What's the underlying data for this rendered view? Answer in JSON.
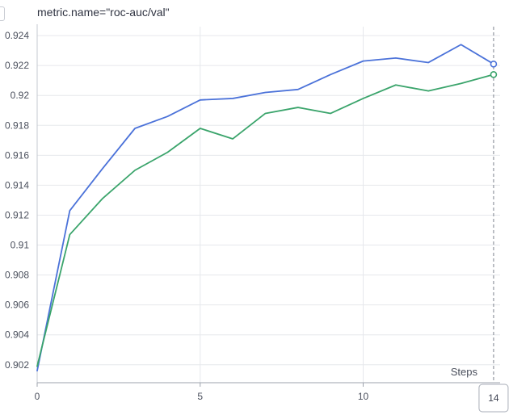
{
  "title": "metric.name=\"roc-auc/val\"",
  "chart_data": {
    "type": "line",
    "xlabel": "Steps",
    "ylabel": "",
    "xlim": [
      0,
      14.2
    ],
    "ylim": [
      0.9008,
      0.9246
    ],
    "x_ticks": [
      0,
      5,
      10
    ],
    "y_ticks": [
      0.902,
      0.904,
      0.906,
      0.908,
      0.91,
      0.912,
      0.914,
      0.916,
      0.918,
      0.92,
      0.922,
      0.924
    ],
    "y_tick_labels": [
      "0.902",
      "0.904",
      "0.906",
      "0.908",
      "0.91",
      "0.912",
      "0.914",
      "0.916",
      "0.918",
      "0.92",
      "0.922",
      "0.924"
    ],
    "grid": true,
    "hover_step": 14,
    "hover_step_label": "14",
    "series": [
      {
        "color": "#4b72d9",
        "x": [
          0,
          1,
          2,
          3,
          4,
          5,
          6,
          7,
          8,
          9,
          10,
          11,
          12,
          13,
          14
        ],
        "values": [
          0.9016,
          0.9123,
          0.9151,
          0.9178,
          0.9186,
          0.9197,
          0.9198,
          0.9202,
          0.9204,
          0.9214,
          0.9223,
          0.9225,
          0.9222,
          0.9234,
          0.9221
        ]
      },
      {
        "color": "#3aa46b",
        "x": [
          0,
          1,
          2,
          3,
          4,
          5,
          6,
          7,
          8,
          9,
          10,
          11,
          12,
          13,
          14
        ],
        "values": [
          0.9019,
          0.9107,
          0.9131,
          0.915,
          0.9162,
          0.9178,
          0.9171,
          0.9188,
          0.9192,
          0.9188,
          0.9198,
          0.9207,
          0.9203,
          0.9208,
          0.9214
        ]
      }
    ]
  }
}
